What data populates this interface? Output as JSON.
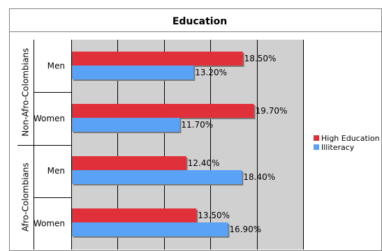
{
  "chart_data": {
    "type": "bar",
    "orientation": "horizontal",
    "title": "Education",
    "groups": [
      {
        "name": "Non-Afro-Colombians",
        "categories": [
          "Men",
          "Women"
        ]
      },
      {
        "name": "Afro-Colombians",
        "categories": [
          "Men",
          "Women"
        ]
      }
    ],
    "series": [
      {
        "name": "High Education",
        "color": "#e0303a",
        "values": [
          18.5,
          19.7,
          12.4,
          13.5
        ],
        "labels": [
          "18.50%",
          "19.70%",
          "12.40%",
          "13.50%"
        ]
      },
      {
        "name": "Illiteracy",
        "color": "#5aa2f5",
        "values": [
          13.2,
          11.7,
          18.4,
          16.9
        ],
        "labels": [
          "13.20%",
          "11.70%",
          "18.40%",
          "16.90%"
        ]
      }
    ],
    "xlim": [
      0,
      25
    ],
    "grid": true,
    "legend_position": "right",
    "plot_background": "#d0d0d0"
  }
}
